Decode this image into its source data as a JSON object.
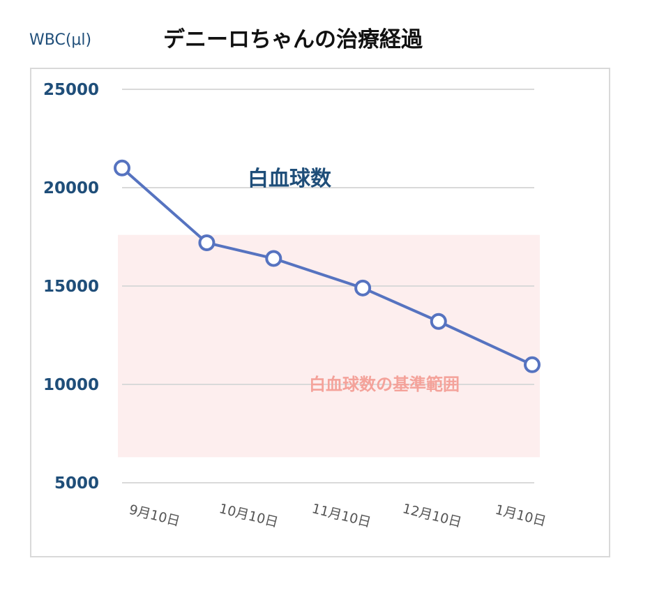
{
  "chart_data": {
    "type": "line",
    "title": "デニーロちゃんの治療経過",
    "ylabel": "WBC(μl)",
    "xlabel": "",
    "categories": [
      "9月10日",
      "10月10日",
      "11月10日",
      "12月10日",
      "1月10日"
    ],
    "x_values": [
      0,
      0.95,
      1.7,
      2.7,
      3.55,
      4.6
    ],
    "series": [
      {
        "name": "白血球数",
        "values": [
          21000,
          17200,
          16400,
          14900,
          13200,
          11000
        ],
        "color": "#5673c0"
      }
    ],
    "y_ticks": [
      5000,
      10000,
      15000,
      20000,
      25000
    ],
    "ylim": [
      5000,
      25000
    ],
    "xlim": [
      0,
      4.6
    ],
    "reference_band": {
      "label": "白血球数の基準範囲",
      "low": 6300,
      "high": 17600,
      "color": "#fdeeee"
    },
    "grid": true,
    "colors": {
      "axis_text": "#1f4e79",
      "grid": "#d9d9d9",
      "frame": "#d9d9d9",
      "band_text": "#f4a29a"
    }
  }
}
